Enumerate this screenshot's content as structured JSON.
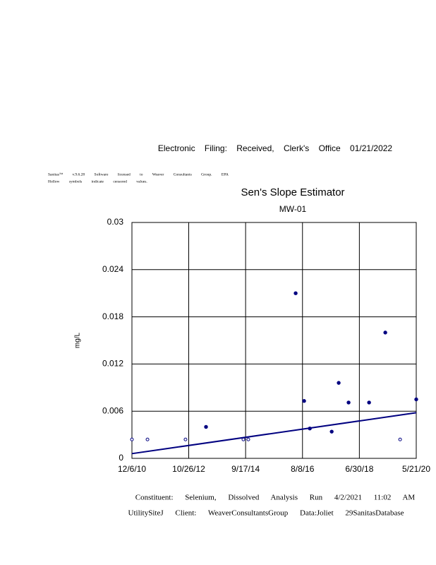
{
  "header": {
    "filing": "Electronic Filing: Received, Clerk's Office 01/21/2022",
    "software": "Sanitas™ v.9.6.28 Software licensed to Weaver Consultants Group. EPA",
    "note": "Hollow symbols indicate censored values."
  },
  "chart_data": {
    "type": "scatter",
    "title": "Sen's Slope Estimator",
    "subtitle": "MW-01",
    "y_label": "mg/L",
    "x": [
      "12/6/10",
      "6/13/11",
      "9/17/12",
      "5/24/13",
      "8/21/14",
      "10/20/14",
      "5/17/16",
      "8/28/16",
      "11/5/16",
      "7/29/17",
      "10/22/17",
      "2/19/18",
      "10/26/18",
      "5/11/19",
      "11/7/19",
      "5/21/20"
    ],
    "values": [
      0.0024,
      0.0024,
      0.0024,
      0.004,
      0.0024,
      0.0024,
      0.021,
      0.0073,
      0.0038,
      0.0034,
      0.0096,
      0.0071,
      0.0071,
      0.016,
      0.0024,
      0.0075
    ],
    "censored": [
      true,
      true,
      true,
      false,
      true,
      true,
      false,
      false,
      false,
      false,
      false,
      false,
      false,
      false,
      true,
      false
    ],
    "color": "#000080",
    "trend": {
      "x": [
        "12/6/10",
        "5/21/20"
      ],
      "values": [
        0.0006,
        0.0058
      ],
      "color": "#000080"
    },
    "xlim": [
      "12/6/10",
      "5/21/20"
    ],
    "xticks": [
      "12/6/10",
      "10/26/12",
      "9/17/14",
      "8/8/16",
      "6/30/18",
      "5/21/20"
    ],
    "ylim": [
      0,
      0.03
    ],
    "yticks": [
      0,
      0.006,
      0.012,
      0.018,
      0.024,
      0.03
    ],
    "grid": true
  },
  "footer": {
    "line1": "Constituent: Selenium, Dissolved Analysis Run 4/2/2021 11:02 AM",
    "line2": "UtilitySiteJ Client: WeaverConsultantsGroup Data:Joliet 29SanitasDatabase"
  }
}
